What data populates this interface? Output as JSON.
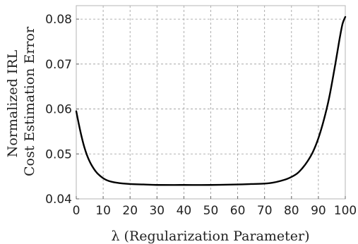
{
  "chart_data": {
    "type": "line",
    "title": "",
    "xlabel": "λ (Regularization Parameter)",
    "ylabel_lines": [
      "Normalized IRL",
      "Cost Estimation Error"
    ],
    "xlim": [
      0,
      100
    ],
    "ylim": [
      0.04,
      0.083
    ],
    "xticks": [
      0,
      10,
      20,
      30,
      40,
      50,
      60,
      70,
      80,
      90,
      100
    ],
    "xtick_labels": [
      "0",
      "10",
      "20",
      "30",
      "40",
      "50",
      "60",
      "70",
      "80",
      "90",
      "100"
    ],
    "yticks": [
      0.04,
      0.05,
      0.06,
      0.07,
      0.08
    ],
    "ytick_labels": [
      "0.04",
      "0.05",
      "0.06",
      "0.07",
      "0.08"
    ],
    "grid": true,
    "series": [
      {
        "color": "#000000",
        "x": [
          0,
          1,
          2,
          3,
          4,
          5,
          6,
          7,
          8,
          10,
          12,
          15,
          20,
          25,
          30,
          40,
          50,
          60,
          65,
          70,
          73,
          76,
          79,
          82,
          84,
          86,
          88,
          90,
          92,
          94,
          96,
          97,
          98,
          99,
          100
        ],
        "y": [
          0.0595,
          0.0565,
          0.0538,
          0.0515,
          0.0497,
          0.0483,
          0.0472,
          0.0463,
          0.0456,
          0.0446,
          0.044,
          0.0436,
          0.0433,
          0.0432,
          0.0431,
          0.0431,
          0.0431,
          0.0432,
          0.0433,
          0.0434,
          0.0436,
          0.044,
          0.0446,
          0.0456,
          0.0468,
          0.0484,
          0.0505,
          0.0535,
          0.0575,
          0.0625,
          0.069,
          0.0725,
          0.076,
          0.079,
          0.0805
        ]
      }
    ]
  }
}
